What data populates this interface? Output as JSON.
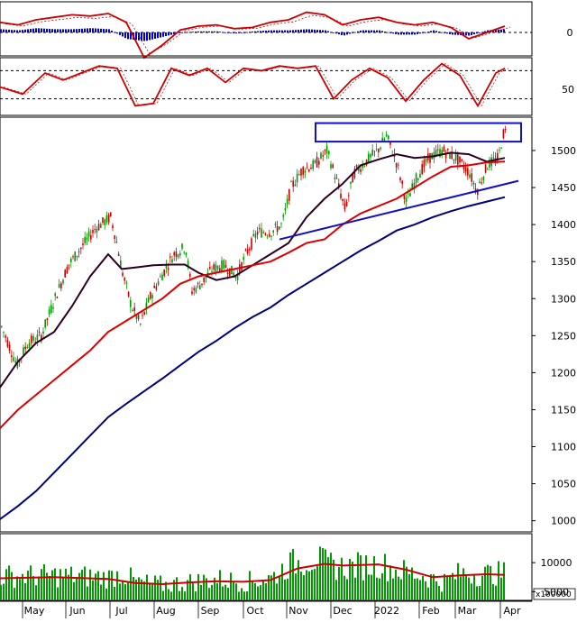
{
  "colors": {
    "background": "#ffffff",
    "border": "#000000",
    "candle_up": "#009a00",
    "candle_down": "#cc0000",
    "ma_short": "#2a0020",
    "ma_mid": "#dd0000",
    "ma_long": "#00007a",
    "trendline": "#1010c0",
    "resistance_box": "#1010c0",
    "volume_bar": "#009a00",
    "volume_ma": "#cc0000",
    "macd_hist": "#0000cc",
    "macd_line": "#cc0000",
    "stoch_line": "#cc0000",
    "grid_dash": "#000000"
  },
  "panels": {
    "macd": {
      "tick_label": "0"
    },
    "stochastic": {
      "tick_label": "50"
    },
    "price": {
      "y_ticks": [
        "1000",
        "1050",
        "1100",
        "1150",
        "1200",
        "1250",
        "1300",
        "1350",
        "1400",
        "1450",
        "1500"
      ]
    },
    "volume": {
      "y_ticks": [
        "5000",
        "10000"
      ],
      "multiplier_label": "x100000"
    }
  },
  "x_axis": {
    "months": [
      "May",
      "Jun",
      "Jul",
      "Aug",
      "Sep",
      "Oct",
      "Nov",
      "Dec",
      "2022",
      "Feb",
      "Mar",
      "Apr"
    ]
  },
  "chart_data": [
    {
      "type": "line",
      "panel": "macd",
      "title": "",
      "series": [
        {
          "role": "macd-line",
          "x": [
            0,
            20,
            40,
            60,
            80,
            100,
            120,
            140,
            160,
            180,
            200,
            220,
            240,
            260,
            280,
            300,
            320,
            340,
            360,
            380,
            400,
            420,
            440,
            460,
            480,
            500,
            520,
            540,
            560
          ],
          "values": [
            8,
            6,
            10,
            12,
            14,
            13,
            15,
            8,
            -20,
            -10,
            2,
            5,
            6,
            3,
            4,
            8,
            10,
            16,
            14,
            6,
            10,
            12,
            8,
            6,
            8,
            4,
            -5,
            0,
            5
          ]
        },
        {
          "role": "histogram",
          "x": [
            0,
            20,
            40,
            60,
            80,
            100,
            120,
            140,
            160,
            180,
            200,
            220,
            240,
            260,
            280,
            300,
            320,
            340,
            360,
            380,
            400,
            420,
            440,
            460,
            480,
            500,
            520,
            540,
            560
          ],
          "values": [
            3,
            2,
            4,
            3,
            3,
            4,
            3,
            -6,
            -8,
            -4,
            0,
            1,
            1,
            -1,
            1,
            2,
            2,
            3,
            2,
            -3,
            2,
            2,
            -2,
            -2,
            2,
            -2,
            -3,
            2,
            3
          ]
        }
      ],
      "zero_label": "0"
    },
    {
      "type": "line",
      "panel": "stochastic",
      "title": "",
      "ylim": [
        0,
        100
      ],
      "reference_lines": [
        20,
        80
      ],
      "series": [
        {
          "role": "stoch",
          "x": [
            0,
            25,
            50,
            70,
            90,
            110,
            130,
            150,
            170,
            190,
            210,
            230,
            250,
            270,
            290,
            310,
            330,
            350,
            370,
            390,
            410,
            430,
            450,
            470,
            490,
            510,
            530,
            550,
            560
          ],
          "values": [
            45,
            30,
            75,
            60,
            75,
            90,
            85,
            5,
            10,
            85,
            70,
            85,
            55,
            85,
            80,
            90,
            85,
            90,
            20,
            60,
            85,
            65,
            15,
            60,
            95,
            70,
            5,
            75,
            85
          ]
        }
      ],
      "tick_label": "50"
    },
    {
      "type": "line",
      "panel": "price",
      "title": "",
      "ylim": [
        985,
        1545
      ],
      "x_months": [
        "May",
        "Jun",
        "Jul",
        "Aug",
        "Sep",
        "Oct",
        "Nov",
        "Dec",
        "2022",
        "Feb",
        "Mar",
        "Apr"
      ],
      "price_path": [
        [
          0,
          1265
        ],
        [
          18,
          1210
        ],
        [
          30,
          1240
        ],
        [
          45,
          1250
        ],
        [
          60,
          1300
        ],
        [
          75,
          1345
        ],
        [
          90,
          1370
        ],
        [
          105,
          1395
        ],
        [
          122,
          1410
        ],
        [
          128,
          1380
        ],
        [
          135,
          1335
        ],
        [
          145,
          1290
        ],
        [
          155,
          1265
        ],
        [
          165,
          1300
        ],
        [
          178,
          1330
        ],
        [
          192,
          1360
        ],
        [
          205,
          1370
        ],
        [
          212,
          1310
        ],
        [
          222,
          1320
        ],
        [
          235,
          1340
        ],
        [
          248,
          1345
        ],
        [
          262,
          1330
        ],
        [
          272,
          1360
        ],
        [
          285,
          1390
        ],
        [
          300,
          1390
        ],
        [
          312,
          1400
        ],
        [
          322,
          1450
        ],
        [
          335,
          1475
        ],
        [
          348,
          1480
        ],
        [
          362,
          1500
        ],
        [
          375,
          1450
        ],
        [
          382,
          1420
        ],
        [
          392,
          1470
        ],
        [
          405,
          1485
        ],
        [
          418,
          1500
        ],
        [
          428,
          1520
        ],
        [
          440,
          1480
        ],
        [
          450,
          1430
        ],
        [
          462,
          1465
        ],
        [
          475,
          1490
        ],
        [
          490,
          1500
        ],
        [
          505,
          1490
        ],
        [
          520,
          1470
        ],
        [
          528,
          1445
        ],
        [
          540,
          1480
        ],
        [
          552,
          1490
        ],
        [
          558,
          1525
        ]
      ],
      "series": [
        {
          "name": "",
          "role": "ma-short",
          "x": [
            0,
            20,
            40,
            60,
            80,
            100,
            120,
            135,
            150,
            170,
            190,
            205,
            220,
            240,
            260,
            280,
            300,
            320,
            340,
            360,
            380,
            400,
            420,
            440,
            460,
            480,
            500,
            520,
            540,
            560
          ],
          "values": [
            1180,
            1215,
            1240,
            1255,
            1290,
            1330,
            1360,
            1340,
            1342,
            1345,
            1346,
            1346,
            1335,
            1325,
            1330,
            1345,
            1360,
            1375,
            1410,
            1435,
            1455,
            1480,
            1488,
            1495,
            1490,
            1492,
            1497,
            1495,
            1485,
            1490
          ]
        },
        {
          "name": "",
          "role": "ma-mid",
          "x": [
            0,
            20,
            40,
            60,
            80,
            100,
            120,
            140,
            160,
            180,
            200,
            220,
            240,
            260,
            280,
            300,
            320,
            340,
            360,
            380,
            400,
            420,
            440,
            460,
            480,
            500,
            520,
            540,
            560
          ],
          "values": [
            1125,
            1150,
            1170,
            1190,
            1210,
            1230,
            1255,
            1270,
            1285,
            1300,
            1320,
            1330,
            1335,
            1340,
            1345,
            1350,
            1362,
            1375,
            1380,
            1400,
            1415,
            1425,
            1435,
            1450,
            1465,
            1478,
            1480,
            1484,
            1485
          ]
        },
        {
          "name": "",
          "role": "ma-long",
          "x": [
            0,
            20,
            40,
            60,
            80,
            100,
            120,
            140,
            160,
            180,
            200,
            220,
            240,
            260,
            280,
            300,
            320,
            340,
            360,
            380,
            400,
            420,
            440,
            460,
            480,
            500,
            520,
            540,
            560
          ],
          "values": [
            1002,
            1020,
            1040,
            1065,
            1090,
            1115,
            1140,
            1158,
            1175,
            1192,
            1210,
            1228,
            1243,
            1260,
            1275,
            1288,
            1305,
            1320,
            1335,
            1350,
            1365,
            1378,
            1392,
            1400,
            1410,
            1418,
            1425,
            1431,
            1437
          ]
        }
      ],
      "trendline": {
        "from": [
          310,
          1380
        ],
        "to": [
          575,
          1459
        ]
      },
      "resistance_box": {
        "x_from": 350,
        "x_to": 578,
        "y_low": 1512,
        "y_high": 1537
      }
    },
    {
      "type": "bar",
      "panel": "volume",
      "title": "",
      "ylim": [
        3500,
        15000
      ],
      "multiplier": "x100000",
      "volume_path": [
        [
          0,
          7500
        ],
        [
          60,
          7600
        ],
        [
          120,
          7300
        ],
        [
          135,
          8000
        ],
        [
          150,
          6500
        ],
        [
          180,
          6000
        ],
        [
          210,
          6500
        ],
        [
          240,
          7000
        ],
        [
          270,
          6500
        ],
        [
          300,
          7200
        ],
        [
          320,
          9500
        ],
        [
          350,
          10500
        ],
        [
          360,
          9500
        ],
        [
          380,
          9000
        ],
        [
          420,
          9500
        ],
        [
          440,
          8500
        ],
        [
          470,
          7500
        ],
        [
          490,
          6500
        ],
        [
          510,
          8000
        ],
        [
          530,
          7800
        ],
        [
          560,
          8000
        ]
      ],
      "ma_path": [
        [
          0,
          7300
        ],
        [
          60,
          7500
        ],
        [
          120,
          7200
        ],
        [
          150,
          6500
        ],
        [
          180,
          6300
        ],
        [
          210,
          6600
        ],
        [
          240,
          6800
        ],
        [
          270,
          6700
        ],
        [
          300,
          7000
        ],
        [
          330,
          9000
        ],
        [
          360,
          9800
        ],
        [
          380,
          9500
        ],
        [
          420,
          9700
        ],
        [
          450,
          8800
        ],
        [
          480,
          7500
        ],
        [
          510,
          7800
        ],
        [
          540,
          8000
        ],
        [
          560,
          7900
        ]
      ]
    }
  ]
}
